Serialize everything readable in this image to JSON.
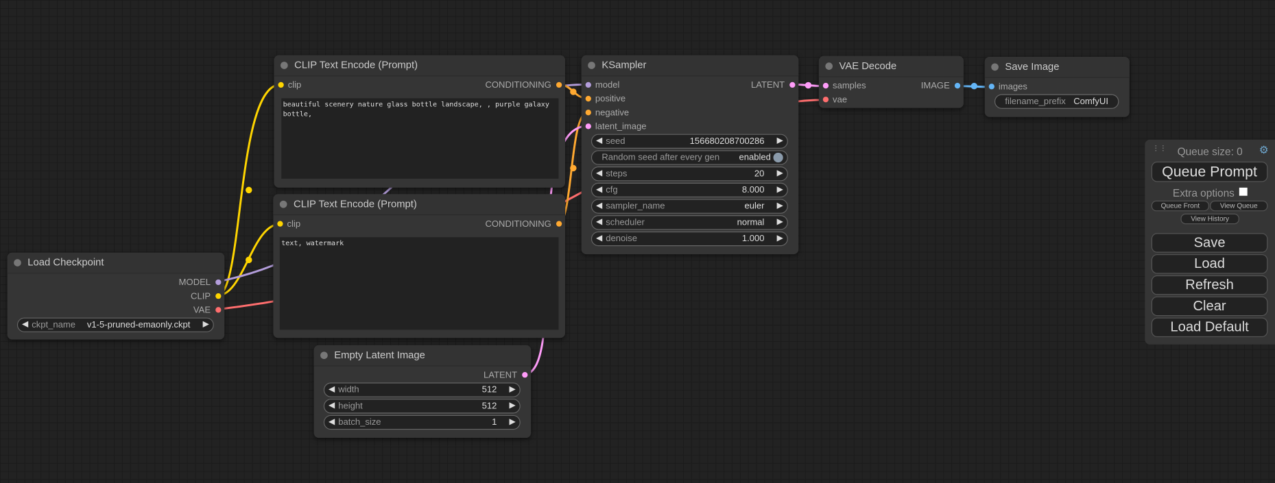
{
  "colors": {
    "model": "#b39ddb",
    "clip": "#ffd500",
    "vae": "#ff6e6e",
    "conditioning": "#ffa931",
    "latent": "#ff9cf9",
    "image": "#64b5f6",
    "canvas": "#222222",
    "node": "#353535"
  },
  "nodes": {
    "clip_pos": {
      "title": "CLIP Text Encode (Prompt)",
      "input": "clip",
      "output": "CONDITIONING",
      "text": "beautiful scenery nature glass bottle landscape, , purple galaxy bottle,"
    },
    "clip_neg": {
      "title": "CLIP Text Encode (Prompt)",
      "input": "clip",
      "output": "CONDITIONING",
      "text": "text, watermark"
    },
    "load_checkpoint": {
      "title": "Load Checkpoint",
      "outputs": [
        "MODEL",
        "CLIP",
        "VAE"
      ],
      "ckpt_label": "ckpt_name",
      "ckpt_value": "v1-5-pruned-emaonly.ckpt"
    },
    "empty_latent": {
      "title": "Empty Latent Image",
      "output": "LATENT",
      "widgets": [
        {
          "label": "width",
          "value": "512"
        },
        {
          "label": "height",
          "value": "512"
        },
        {
          "label": "batch_size",
          "value": "1"
        }
      ]
    },
    "ksampler": {
      "title": "KSampler",
      "inputs": [
        "model",
        "positive",
        "negative",
        "latent_image"
      ],
      "output": "LATENT",
      "seed": {
        "label": "seed",
        "value": "156680208700286"
      },
      "random": {
        "label": "Random seed after every gen",
        "value": "enabled"
      },
      "widgets": [
        {
          "label": "steps",
          "value": "20"
        },
        {
          "label": "cfg",
          "value": "8.000"
        },
        {
          "label": "sampler_name",
          "value": "euler"
        },
        {
          "label": "scheduler",
          "value": "normal"
        },
        {
          "label": "denoise",
          "value": "1.000"
        }
      ]
    },
    "vae_decode": {
      "title": "VAE Decode",
      "inputs": [
        "samples",
        "vae"
      ],
      "output": "IMAGE"
    },
    "save_image": {
      "title": "Save Image",
      "input": "images",
      "prefix_label": "filename_prefix",
      "prefix_value": "ComfyUI"
    }
  },
  "panel": {
    "queue_size": "Queue size: 0",
    "queue_prompt": "Queue Prompt",
    "extra_options": "Extra options",
    "extra_checked": false,
    "queue_front": "Queue Front",
    "view_queue": "View Queue",
    "view_history": "View History",
    "save": "Save",
    "load": "Load",
    "refresh": "Refresh",
    "clear": "Clear",
    "load_default": "Load Default"
  }
}
